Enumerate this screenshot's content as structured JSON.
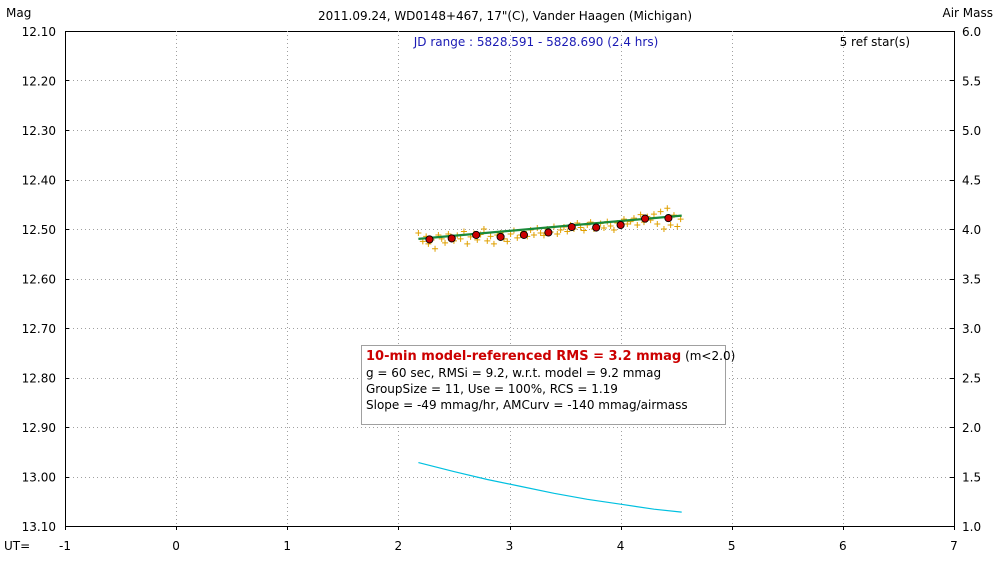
{
  "header": {
    "left_axis_title": "Mag",
    "right_axis_title": "Air Mass",
    "title": "2011.09.24, WD0148+467, 17\"(C), Vander Haagen (Michigan)",
    "jd_range": "JD range : 5828.591 - 5828.690 (2.4 hrs)",
    "ref_stars": "5 ref star(s)",
    "x_axis_prefix": "UT="
  },
  "stats": {
    "headline": "10-min model-referenced RMS = 3.2 mmag",
    "headline_suffix": " (m<2.0)",
    "line2": "g = 60 sec, RMSi = 9.2, w.r.t. model = 9.2 mmag",
    "line3": "GroupSize = 11, Use = 100%, RCS = 1.19",
    "line4": "Slope = -49 mmag/hr, AMCurv = -140 mmag/airmass"
  },
  "colors": {
    "raw_points": "#e0a000",
    "group_points": "#cc0000",
    "model_line": "#1a8a3a",
    "airmass_line": "#00c0e0",
    "grid": "#a0a0a0",
    "jd_text": "#1a1ab4"
  },
  "chart_data": {
    "type": "scatter",
    "title": "2011.09.24, WD0148+467, 17\"(C), Vander Haagen (Michigan)",
    "xlabel": "UT=",
    "ylabel": "Mag",
    "y2label": "Air Mass",
    "xlim": [
      -1,
      7
    ],
    "ylim": [
      12.1,
      13.1
    ],
    "y_inverted": true,
    "y2lim": [
      1.0,
      6.0
    ],
    "x_ticks": [
      "-1",
      "0",
      "1",
      "2",
      "3",
      "4",
      "5",
      "6",
      "7"
    ],
    "y_ticks": [
      "12.10",
      "12.20",
      "12.30",
      "12.40",
      "12.50",
      "12.60",
      "12.70",
      "12.80",
      "12.90",
      "13.00",
      "13.10"
    ],
    "y2_ticks": [
      "6.0",
      "5.5",
      "5.0",
      "4.5",
      "4.0",
      "3.5",
      "3.0",
      "2.5",
      "2.0",
      "1.5",
      "1.0"
    ],
    "grid": true,
    "series": [
      {
        "kind": "group_means",
        "x": [
          2.28,
          2.48,
          2.7,
          2.92,
          3.13,
          3.35,
          3.56,
          3.78,
          4.0,
          4.22,
          4.43
        ],
        "y": [
          12.521,
          12.519,
          12.512,
          12.516,
          12.512,
          12.507,
          12.496,
          12.497,
          12.492,
          12.479,
          12.478
        ]
      },
      {
        "kind": "model",
        "x": [
          2.18,
          4.55
        ],
        "y": [
          12.52,
          12.473
        ]
      },
      {
        "kind": "raw",
        "x": [
          2.18,
          2.22,
          2.25,
          2.27,
          2.3,
          2.33,
          2.36,
          2.39,
          2.42,
          2.45,
          2.48,
          2.5,
          2.53,
          2.56,
          2.59,
          2.62,
          2.65,
          2.68,
          2.71,
          2.74,
          2.77,
          2.8,
          2.83,
          2.86,
          2.89,
          2.92,
          2.95,
          2.98,
          3.01,
          3.04,
          3.07,
          3.1,
          3.13,
          3.16,
          3.19,
          3.22,
          3.25,
          3.28,
          3.31,
          3.34,
          3.37,
          3.4,
          3.43,
          3.46,
          3.49,
          3.52,
          3.55,
          3.58,
          3.61,
          3.64,
          3.67,
          3.7,
          3.73,
          3.76,
          3.79,
          3.82,
          3.85,
          3.88,
          3.91,
          3.94,
          3.97,
          4.0,
          4.03,
          4.06,
          4.09,
          4.12,
          4.15,
          4.18,
          4.21,
          4.24,
          4.27,
          4.3,
          4.33,
          4.36,
          4.39,
          4.42,
          4.45,
          4.48,
          4.51,
          4.54
        ],
        "y": [
          12.508,
          12.525,
          12.515,
          12.53,
          12.522,
          12.54,
          12.512,
          12.52,
          12.528,
          12.51,
          12.517,
          12.524,
          12.513,
          12.52,
          12.505,
          12.53,
          12.516,
          12.509,
          12.522,
          12.511,
          12.5,
          12.524,
          12.515,
          12.53,
          12.512,
          12.508,
          12.52,
          12.525,
          12.51,
          12.503,
          12.518,
          12.512,
          12.505,
          12.515,
          12.502,
          12.512,
          12.498,
          12.508,
          12.513,
          12.5,
          12.506,
          12.495,
          12.51,
          12.502,
          12.496,
          12.505,
          12.492,
          12.5,
          12.488,
          12.497,
          12.503,
          12.492,
          12.486,
          12.5,
          12.495,
          12.489,
          12.498,
          12.485,
          12.494,
          12.502,
          12.488,
          12.493,
          12.48,
          12.49,
          12.485,
          12.478,
          12.492,
          12.471,
          12.486,
          12.475,
          12.482,
          12.47,
          12.49,
          12.465,
          12.5,
          12.458,
          12.492,
          12.472,
          12.495,
          12.48
        ]
      },
      {
        "kind": "airmass",
        "axis": "y2",
        "x": [
          2.18,
          2.5,
          2.8,
          3.1,
          3.4,
          3.7,
          4.0,
          4.3,
          4.55
        ],
        "y": [
          1.64,
          1.55,
          1.47,
          1.4,
          1.33,
          1.27,
          1.22,
          1.17,
          1.14
        ]
      }
    ]
  }
}
